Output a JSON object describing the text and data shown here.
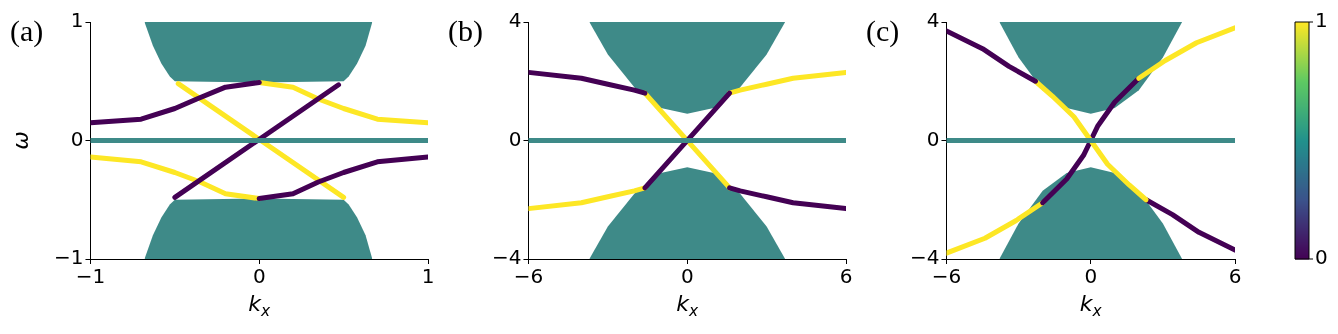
{
  "chart_data": [
    {
      "type": "line",
      "title": "(a)",
      "xlabel": "k$_{x}$",
      "ylabel": "ω",
      "xlim": [
        -1,
        1
      ],
      "ylim": [
        -1,
        1
      ],
      "xticks": [
        -1,
        0,
        1
      ],
      "yticks": [
        -1,
        0,
        1
      ],
      "grid": false,
      "series": [
        {
          "type": "area",
          "color": "#3e8a88",
          "x": [
            -0.68,
            -0.63,
            -0.58,
            -0.53,
            -0.5,
            0,
            0.5,
            0.53,
            0.58,
            0.63,
            0.67
          ],
          "values": [
            1,
            0.8,
            0.65,
            0.54,
            0.5,
            0.49,
            0.5,
            0.54,
            0.65,
            0.8,
            1
          ]
        },
        {
          "type": "area",
          "color": "#3e8a88",
          "x": [
            -0.68,
            -0.63,
            -0.58,
            -0.53,
            -0.5,
            0,
            0.5,
            0.53,
            0.58,
            0.63,
            0.67
          ],
          "values": [
            -1,
            -0.8,
            -0.65,
            -0.54,
            -0.5,
            -0.49,
            -0.5,
            -0.54,
            -0.65,
            -0.8,
            -1
          ]
        },
        {
          "type": "line",
          "color": "#3e8a88",
          "x": [
            -1,
            1
          ],
          "values": [
            0,
            0
          ]
        },
        {
          "color": "#440154",
          "x": [
            -1,
            -0.7,
            -0.5,
            -0.37,
            -0.2,
            0
          ],
          "values": [
            0.15,
            0.18,
            0.27,
            0.35,
            0.45,
            0.49
          ]
        },
        {
          "color": "#440154",
          "x": [
            -0.5,
            0.47
          ],
          "values": [
            -0.48,
            0.47
          ]
        },
        {
          "color": "#440154",
          "x": [
            0,
            0.2,
            0.35,
            0.5,
            0.7,
            1
          ],
          "values": [
            -0.49,
            -0.45,
            -0.35,
            -0.27,
            -0.18,
            -0.14
          ]
        },
        {
          "color": "#fde725",
          "x": [
            -0.48,
            0.5
          ],
          "values": [
            0.48,
            -0.48
          ]
        },
        {
          "color": "#fde725",
          "x": [
            0,
            0.2,
            0.35,
            0.5,
            0.7,
            1
          ],
          "values": [
            0.49,
            0.45,
            0.35,
            0.27,
            0.18,
            0.15
          ]
        },
        {
          "color": "#fde725",
          "x": [
            -1,
            -0.7,
            -0.5,
            -0.35,
            -0.2,
            0
          ],
          "values": [
            -0.14,
            -0.18,
            -0.27,
            -0.35,
            -0.45,
            -0.49
          ]
        }
      ]
    },
    {
      "type": "line",
      "title": "(b)",
      "xlabel": "k$_{x}$",
      "xlim": [
        -6,
        6
      ],
      "ylim": [
        -4,
        4
      ],
      "xticks": [
        -6,
        0,
        6
      ],
      "yticks": [
        -4,
        0,
        4
      ],
      "grid": false,
      "series": [
        {
          "type": "area",
          "color": "#3e8a88",
          "x": [
            -3.7,
            -3,
            -2,
            -1,
            0,
            1,
            2,
            3,
            3.7
          ],
          "values": [
            4,
            2.9,
            1.8,
            1.1,
            0.9,
            1.1,
            1.8,
            2.9,
            4
          ]
        },
        {
          "type": "area",
          "color": "#3e8a88",
          "x": [
            -3.7,
            -3,
            -2,
            -1,
            0,
            1,
            2,
            3,
            3.7
          ],
          "values": [
            -4,
            -2.9,
            -1.8,
            -1.1,
            -0.9,
            -1.1,
            -1.8,
            -2.9,
            -4
          ]
        },
        {
          "type": "line",
          "color": "#3e8a88",
          "x": [
            -6,
            6
          ],
          "values": [
            0,
            0
          ]
        },
        {
          "color": "#440154",
          "x": [
            -6,
            -4,
            -3,
            -2,
            -1.6
          ],
          "values": [
            2.3,
            2.1,
            1.9,
            1.7,
            1.6
          ]
        },
        {
          "color": "#440154",
          "x": [
            -1.6,
            1.6
          ],
          "values": [
            -1.6,
            1.6
          ]
        },
        {
          "color": "#440154",
          "x": [
            1.6,
            2,
            3,
            4,
            6
          ],
          "values": [
            -1.6,
            -1.7,
            -1.9,
            -2.1,
            -2.3
          ]
        },
        {
          "color": "#fde725",
          "x": [
            -1.6,
            1.6
          ],
          "values": [
            1.6,
            -1.6
          ]
        },
        {
          "color": "#fde725",
          "x": [
            1.6,
            2,
            3,
            4,
            6
          ],
          "values": [
            1.6,
            1.7,
            1.9,
            2.1,
            2.3
          ]
        },
        {
          "color": "#fde725",
          "x": [
            -6,
            -4,
            -3,
            -2,
            -1.6
          ],
          "values": [
            -2.3,
            -2.1,
            -1.9,
            -1.7,
            -1.6
          ]
        }
      ]
    },
    {
      "type": "line",
      "title": "(c)",
      "xlabel": "k$_{x}$",
      "xlim": [
        -6,
        6
      ],
      "ylim": [
        -4,
        4
      ],
      "xticks": [
        -6,
        0,
        6
      ],
      "yticks": [
        -4,
        0,
        4
      ],
      "grid": false,
      "clim": [
        0,
        1
      ],
      "cticks": [
        0,
        1
      ],
      "series": [
        {
          "type": "area",
          "color": "#3e8a88",
          "x": [
            -3.8,
            -3,
            -2,
            -1,
            0,
            1,
            2,
            3,
            3.8
          ],
          "values": [
            4,
            2.8,
            1.7,
            1.1,
            0.9,
            1.1,
            1.7,
            2.8,
            4
          ]
        },
        {
          "type": "area",
          "color": "#3e8a88",
          "x": [
            -3.8,
            -3,
            -2,
            -1,
            0,
            1,
            2,
            3,
            3.8
          ],
          "values": [
            -4,
            -2.8,
            -1.7,
            -1.1,
            -0.9,
            -1.1,
            -1.7,
            -2.8,
            -4
          ]
        },
        {
          "type": "line",
          "color": "#3e8a88",
          "x": [
            -6,
            6
          ],
          "values": [
            0,
            0
          ]
        },
        {
          "color": "#440154",
          "x": [
            -6,
            -4.5,
            -3.4,
            -2.3
          ],
          "values": [
            3.7,
            3.1,
            2.5,
            2
          ]
        },
        {
          "color": "#fde725",
          "x": [
            -2.3,
            -1.6,
            -0.7,
            0,
            0.7,
            1.6,
            2.3
          ],
          "values": [
            2,
            1.5,
            0.8,
            0,
            -0.8,
            -1.5,
            -2
          ]
        },
        {
          "color": "#fde725",
          "x": [
            2,
            3.1,
            4.4,
            6
          ],
          "values": [
            2.1,
            2.7,
            3.3,
            3.8
          ]
        },
        {
          "color": "#440154",
          "x": [
            -2,
            -1,
            -0.3,
            0,
            0.3,
            1,
            2
          ],
          "values": [
            -2.1,
            -1.3,
            -0.5,
            0,
            0.5,
            1.3,
            2.1
          ]
        },
        {
          "color": "#440154",
          "x": [
            2.3,
            3.4,
            4.5,
            6
          ],
          "values": [
            -2,
            -2.5,
            -3.1,
            -3.7
          ]
        },
        {
          "color": "#fde725",
          "x": [
            -6,
            -4.4,
            -3.1,
            -2
          ],
          "values": [
            -3.8,
            -3.3,
            -2.7,
            -2.1
          ]
        }
      ]
    }
  ]
}
